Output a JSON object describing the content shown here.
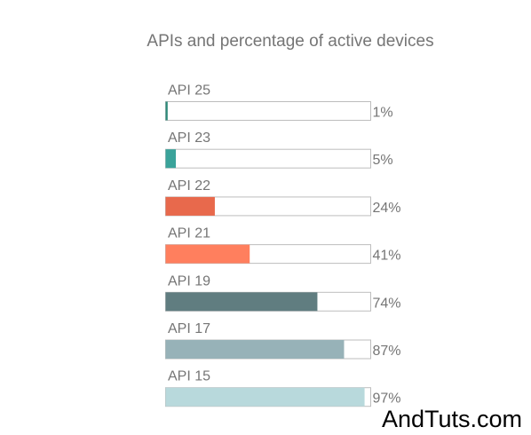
{
  "chart_data": {
    "type": "bar",
    "orientation": "horizontal",
    "title": "APIs and percentage of active devices",
    "categories": [
      "API 25",
      "API 23",
      "API 22",
      "API 21",
      "API 19",
      "API 17",
      "API 15"
    ],
    "values": [
      1,
      5,
      24,
      41,
      74,
      87,
      97
    ],
    "value_labels": [
      "1%",
      "5%",
      "24%",
      "41%",
      "74%",
      "87%",
      "97%"
    ],
    "colors": [
      "#2e8b7a",
      "#3aa39a",
      "#e8694c",
      "#ff7f5e",
      "#607d80",
      "#97b2b8",
      "#b8d9dc"
    ],
    "xlim": [
      0,
      100
    ],
    "xlabel": "",
    "ylabel": "",
    "grid": false,
    "legend": "none"
  },
  "watermark": "AndTuts.com"
}
